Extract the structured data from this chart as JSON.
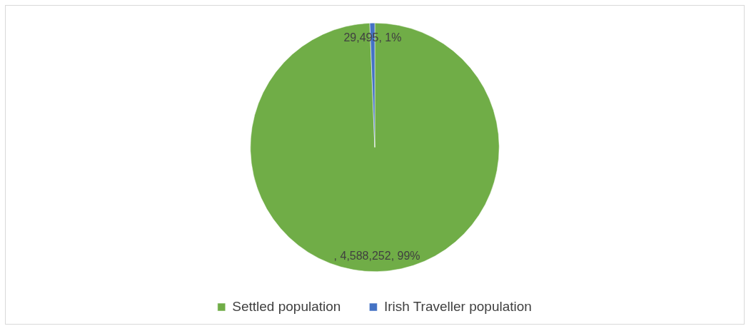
{
  "chart_data": {
    "type": "pie",
    "categories": [
      "Settled population",
      "Irish Traveller population"
    ],
    "values": [
      4588252,
      29495
    ],
    "colors": [
      "#70ad47",
      "#4472c4"
    ],
    "value_labels": [
      ", 4,588,252, 99%",
      "29,495, 1%"
    ],
    "legend": "bottom"
  }
}
